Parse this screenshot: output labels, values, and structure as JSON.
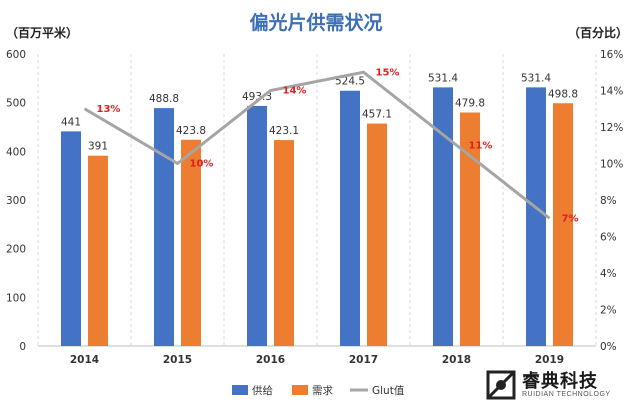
{
  "chart_data": {
    "type": "bar",
    "title": "偏光片供需状况",
    "y_left_label": "（百万平米）",
    "y_right_label": "（百分比）",
    "ylim": [
      0,
      600
    ],
    "y_ticks": [
      "0",
      "100",
      "200",
      "300",
      "400",
      "500",
      "600"
    ],
    "y2lim": [
      0,
      16
    ],
    "y2_ticks": [
      "0%",
      "2%",
      "4%",
      "6%",
      "8%",
      "10%",
      "12%",
      "14%",
      "16%"
    ],
    "categories": [
      "2014",
      "2015",
      "2016",
      "2017",
      "2018",
      "2019"
    ],
    "series": [
      {
        "name": "供给",
        "type": "bar",
        "axis": "left",
        "color": "#4472c4",
        "values": [
          441,
          488.8,
          493.3,
          524.5,
          531.4,
          531.4
        ],
        "labels": [
          "441",
          "488.8",
          "493.3",
          "524.5",
          "531.4",
          "531.4"
        ]
      },
      {
        "name": "需求",
        "type": "bar",
        "axis": "left",
        "color": "#ed7d31",
        "values": [
          391,
          423.8,
          423.1,
          457.1,
          479.8,
          498.8
        ],
        "labels": [
          "391",
          "423.8",
          "423.1",
          "457.1",
          "479.8",
          "498.8"
        ]
      },
      {
        "name": "Glut值",
        "type": "line",
        "axis": "right",
        "color": "#a5a5a5",
        "values": [
          13,
          10,
          14,
          15,
          11,
          7
        ],
        "labels": [
          "13%",
          "10%",
          "14%",
          "15%",
          "11%",
          "7%"
        ]
      }
    ],
    "legend": "bottom",
    "grid": "vertical-dashed",
    "line_label_color": "#e02020"
  },
  "logo": {
    "name": "睿典科技",
    "sub": "RUIDIAN TECHNOLOGY"
  }
}
